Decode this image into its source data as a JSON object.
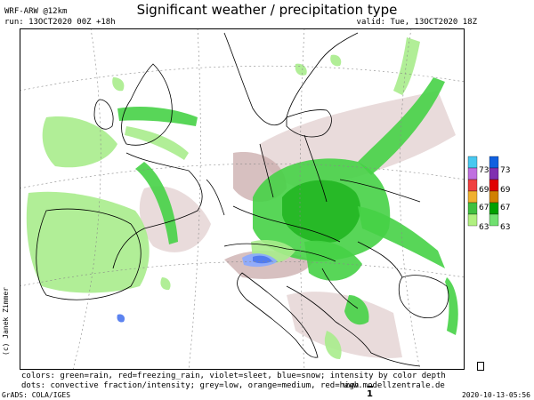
{
  "header": {
    "title": "Significant weather / precipitation type",
    "model": "WRF-ARW @12km",
    "run": "run: 13OCT2020 00Z +18h",
    "valid": "valid: Tue, 13OCT2020 18Z"
  },
  "side_label": "(c) Janek Zimmer",
  "legend": {
    "colors_line": "colors: green=rain, red=freezing_rain, violet=sleet, blue=snow; intensity by color depth",
    "dots_line": "dots: convective fraction/intensity;  grey=low, orange=medium, red=high",
    "website": "www.modellzentrale.de"
  },
  "footer": {
    "grads": "GrADS: COLA/IGES",
    "datestamp": "2020-10-13-05:56",
    "page_number": "1"
  },
  "colorbar": {
    "left_labels": [
      "73",
      "69",
      "67",
      "63"
    ],
    "right_labels": [
      "73",
      "69",
      "67",
      "63"
    ],
    "left_colors": [
      "#48c8f0",
      "#c070e0",
      "#f04040",
      "#f0b030",
      "#40c040",
      "#b0f080"
    ],
    "right_colors": [
      "#1060e0",
      "#8030b0",
      "#e00000",
      "#d08000",
      "#00a000",
      "#70e070"
    ]
  },
  "colors": {
    "rain_light": "#a8ec8c",
    "rain": "#46d246",
    "rain_heavy": "#22b622",
    "snow": "#4a76ee",
    "snow_light": "#8aa8ff",
    "terrain_tint": "#e2cfcf",
    "terrain_tint_dark": "#c9abab"
  }
}
